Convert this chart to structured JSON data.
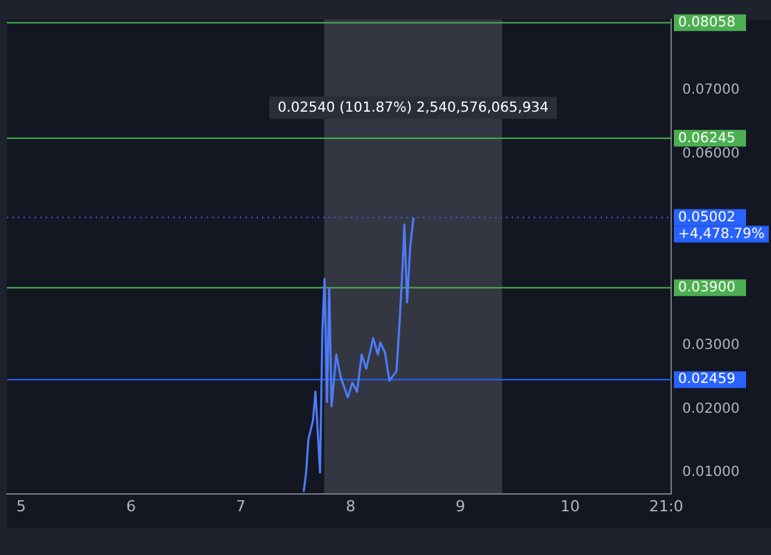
{
  "chart_data": {
    "type": "line",
    "x": [
      7.573,
      7.595,
      7.616,
      7.658,
      7.68,
      7.722,
      7.743,
      7.763,
      7.785,
      7.806,
      7.827,
      7.87,
      7.911,
      7.975,
      8.016,
      8.059,
      8.101,
      8.143,
      8.206,
      8.249,
      8.27,
      8.313,
      8.354,
      8.418,
      8.447,
      8.481,
      8.49,
      8.515,
      8.544,
      8.573
    ],
    "series": [
      {
        "color": "#4d7cfe",
        "values": [
          0.007,
          0.01,
          0.0152,
          0.0182,
          0.0227,
          0.01,
          0.0322,
          0.0404,
          0.0211,
          0.0389,
          0.0204,
          0.0285,
          0.0249,
          0.0218,
          0.0241,
          0.0227,
          0.0285,
          0.0263,
          0.0311,
          0.0285,
          0.0304,
          0.0289,
          0.0244,
          0.0259,
          0.0337,
          0.0448,
          0.0489,
          0.0367,
          0.0456,
          0.05
        ]
      }
    ],
    "xlim": [
      4.87,
      10.92
    ],
    "xticks": [
      5,
      6,
      7,
      8,
      9,
      10,
      {
        "value": 10.875,
        "label": "21:0"
      }
    ],
    "ylim": [
      0.0067,
      0.0811
    ],
    "yticks": [
      {
        "value": 0.01,
        "label": "0.01000"
      },
      {
        "value": 0.02,
        "label": "0.02000"
      },
      {
        "value": 0.03,
        "label": "0.03000"
      },
      {
        "value": 0.06,
        "label": "0.06000"
      },
      {
        "value": 0.07,
        "label": "0.07000"
      }
    ],
    "ref_lines": [
      {
        "axis": "y",
        "value": 0.08058,
        "label": "0.08058",
        "color": "#4caf50"
      },
      {
        "axis": "y",
        "value": 0.06245,
        "label": "0.06245",
        "color": "#4caf50"
      },
      {
        "axis": "y",
        "value": 0.05002,
        "label": "0.05002",
        "color": "#2962ff",
        "line_style": "dotted"
      },
      {
        "axis": "y",
        "value": 0.039,
        "label": "0.03900",
        "color": "#4caf50"
      },
      {
        "axis": "y",
        "value": 0.02459,
        "label": "0.02459",
        "color": "#2962ff"
      }
    ],
    "bands": [
      {
        "axis": "x",
        "from": 7.76,
        "to": 9.38,
        "color": "#5d606b"
      }
    ],
    "annotations": [
      "0.02540 (101.87%) 2,540,576,065,934",
      "+4,478.79%"
    ],
    "grid": false,
    "legend": false,
    "marker": "none",
    "line_style": "solid"
  }
}
